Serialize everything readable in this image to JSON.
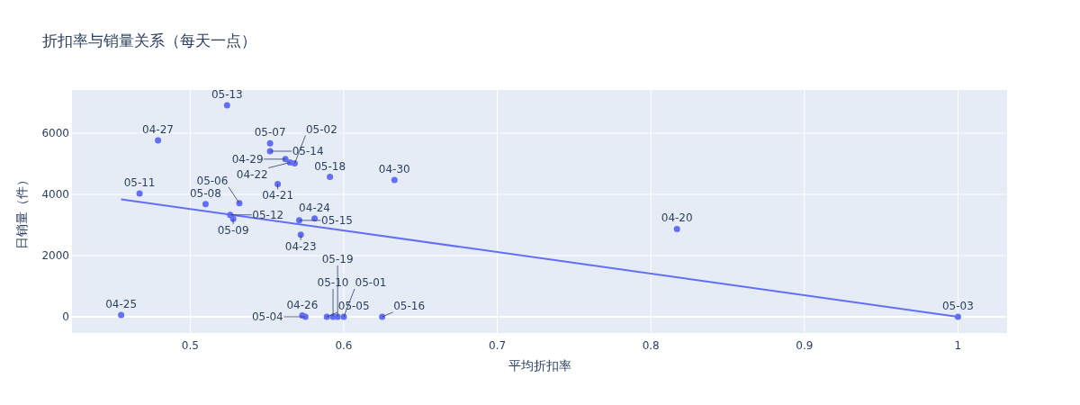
{
  "chart_data": {
    "type": "scatter",
    "title": "折扣率与销量关系（每天一点）",
    "xlabel": "平均折扣率",
    "ylabel": "日销量（件）",
    "xlim": [
      0.423,
      1.032
    ],
    "xticks": [
      0.5,
      0.6,
      0.7,
      0.8,
      0.9,
      {
        "value": 1,
        "label": "1"
      }
    ],
    "ylim": [
      -530,
      7410
    ],
    "yticks": [
      0,
      2000,
      4000,
      6000
    ],
    "grid": true,
    "series": [
      {
        "color": "#636efa",
        "marker": "circle",
        "x": [
          0.524,
          0.479,
          0.467,
          0.455,
          0.552,
          0.552,
          0.562,
          0.565,
          0.568,
          0.557,
          0.591,
          0.633,
          0.51,
          0.532,
          0.526,
          0.528,
          0.571,
          0.581,
          0.572,
          0.817,
          1.0,
          0.573,
          0.575,
          0.589,
          0.593,
          0.596,
          0.6,
          0.625
        ],
        "values": [
          6910,
          5760,
          4030,
          60,
          5670,
          5410,
          5150,
          5040,
          5010,
          4340,
          4570,
          4470,
          3680,
          3710,
          3330,
          3200,
          3150,
          3210,
          2680,
          2870,
          0,
          40,
          0,
          0,
          0,
          0,
          0,
          0
        ]
      },
      {
        "type": "line",
        "color": "#636efa",
        "marker": "none",
        "x": [
          0.455,
          1.0
        ],
        "values": [
          3840,
          0
        ]
      }
    ],
    "annotations": [
      {
        "text": "05-13",
        "x": 0.524,
        "y": 6910
      },
      {
        "text": "04-27",
        "x": 0.479,
        "y": 5760
      },
      {
        "text": "05-11",
        "x": 0.467,
        "y": 4030
      },
      {
        "text": "04-25",
        "x": 0.455,
        "y": 60
      },
      {
        "text": "05-07",
        "x": 0.552,
        "y": 5670
      },
      {
        "text": "05-14",
        "x": 0.552,
        "y": 5410
      },
      {
        "text": "04-29",
        "x": 0.562,
        "y": 5150
      },
      {
        "text": "04-22",
        "x": 0.565,
        "y": 5040
      },
      {
        "text": "05-02",
        "x": 0.568,
        "y": 5010
      },
      {
        "text": "04-21",
        "x": 0.557,
        "y": 4340
      },
      {
        "text": "05-18",
        "x": 0.591,
        "y": 4570
      },
      {
        "text": "04-30",
        "x": 0.633,
        "y": 4470
      },
      {
        "text": "05-08",
        "x": 0.51,
        "y": 3680
      },
      {
        "text": "05-06",
        "x": 0.532,
        "y": 3710
      },
      {
        "text": "05-12",
        "x": 0.526,
        "y": 3330
      },
      {
        "text": "05-09",
        "x": 0.528,
        "y": 3200
      },
      {
        "text": "05-15",
        "x": 0.571,
        "y": 3150
      },
      {
        "text": "04-24",
        "x": 0.581,
        "y": 3210
      },
      {
        "text": "04-23",
        "x": 0.572,
        "y": 2680
      },
      {
        "text": "04-20",
        "x": 0.817,
        "y": 2870
      },
      {
        "text": "05-03",
        "x": 1.0,
        "y": 0
      },
      {
        "text": "04-26",
        "x": 0.573,
        "y": 40
      },
      {
        "text": "05-04",
        "x": 0.575,
        "y": 0
      },
      {
        "text": "05-05",
        "x": 0.589,
        "y": 0
      },
      {
        "text": "05-10",
        "x": 0.593,
        "y": 0
      },
      {
        "text": "05-19",
        "x": 0.596,
        "y": 0
      },
      {
        "text": "05-01",
        "x": 0.6,
        "y": 0
      },
      {
        "text": "05-16",
        "x": 0.625,
        "y": 0
      }
    ]
  }
}
